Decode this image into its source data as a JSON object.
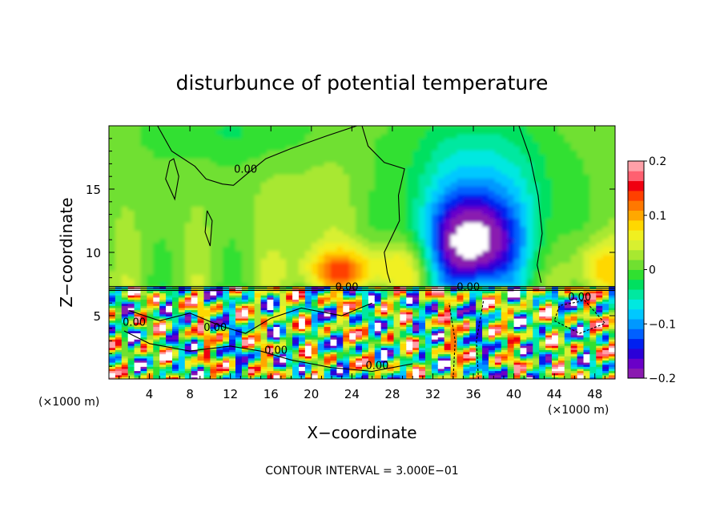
{
  "chart_data": {
    "type": "heatmap",
    "title": "disturbunce of potential temperature",
    "xlabel": "X−coordinate",
    "ylabel": "Z−coordinate",
    "x_unit_left": "(×1000 m)",
    "x_unit_right": "(×1000 m)",
    "footer": "CONTOUR INTERVAL = 3.000E−01",
    "xlim": [
      0,
      50
    ],
    "ylim": [
      0,
      20
    ],
    "x_ticks": [
      4,
      8,
      12,
      16,
      20,
      24,
      28,
      32,
      36,
      40,
      44,
      48
    ],
    "y_ticks": [
      5,
      10,
      15
    ],
    "colorbar": {
      "range": [
        -0.2,
        0.2
      ],
      "tick_values": [
        0.2,
        0.1,
        0,
        -0.1,
        -0.2
      ],
      "tick_labels": [
        "0.2",
        "0.1",
        "0",
        "−0.1",
        "−0.2"
      ],
      "colors": [
        "#8a1ab0",
        "#6a00c8",
        "#2a00d8",
        "#0020f0",
        "#0060ff",
        "#0098ff",
        "#00c8ff",
        "#00e8e0",
        "#00e8a0",
        "#00e060",
        "#30e030",
        "#70e030",
        "#a8e830",
        "#d8f030",
        "#f0f020",
        "#ffd800",
        "#ffa800",
        "#ff7800",
        "#ff4000",
        "#f00010",
        "#ff6070",
        "#ffa0a8"
      ]
    },
    "contour_labels": [
      {
        "text": "0.00",
        "x": 13.5,
        "z": 16.3
      },
      {
        "text": "0.00",
        "x": 23.5,
        "z": 7.0
      },
      {
        "text": "0.00",
        "x": 35.5,
        "z": 7.0
      },
      {
        "text": "0.00",
        "x": 46.5,
        "z": 6.2
      },
      {
        "text": "0.00",
        "x": 2.5,
        "z": 4.2
      },
      {
        "text": "0.00",
        "x": 10.5,
        "z": 3.8
      },
      {
        "text": "0.00",
        "x": 16.5,
        "z": 2.0
      },
      {
        "text": "0.00",
        "x": 26.5,
        "z": 0.8
      }
    ]
  }
}
